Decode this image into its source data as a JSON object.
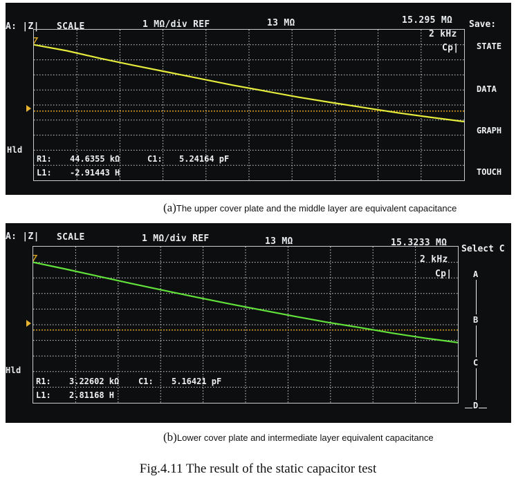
{
  "panels": [
    {
      "id": "a",
      "header": {
        "param": "A: |Z|",
        "scale": "SCALE",
        "div": "1 MΩ/div REF",
        "center": "13 MΩ",
        "ref_value": "15.295 MΩ",
        "freq": "2 kHz",
        "mode": "Cp|"
      },
      "menu_title": "Save:",
      "menu_items": [
        "STATE",
        "DATA",
        "GRAPH",
        "TOUCH"
      ],
      "hld": "Hld",
      "readout": {
        "r1_label": "R1:",
        "r1_value": "44.6355 kΩ",
        "c1_label": "C1:",
        "c1_value": "5.24164 pF",
        "l1_label": "L1:",
        "l1_value": "-2.91443 H"
      },
      "caption_letter": "a",
      "caption_text": "The upper cover plate and the middle layer are equivalent capacitance"
    },
    {
      "id": "b",
      "header": {
        "param": "A: |Z|",
        "scale": "SCALE",
        "div": "1 MΩ/div REF",
        "center": "13 MΩ",
        "ref_value": "15.3233 MΩ",
        "freq": "2 kHz",
        "mode": "Cp|"
      },
      "menu_title": "Select C",
      "menu_items": [
        "A",
        "B",
        "C",
        "D"
      ],
      "hld": "Hld",
      "readout": {
        "r1_label": "R1:",
        "r1_value": "3.22602 kΩ",
        "c1_label": "C1:",
        "c1_value": "5.16421 pF",
        "l1_label": "L1:",
        "l1_value": "2.81168 H"
      },
      "caption_letter": "b",
      "caption_text": "Lower cover plate and intermediate layer equivalent capacitance"
    }
  ],
  "figure_caption": "Fig.4.11 The result of the static capacitor test",
  "colors": {
    "trace_a": "#e6ec3c",
    "trace_b": "#62e23a",
    "ref_line": "#d9a520",
    "grid": "#d8d8d8",
    "screen_bg": "#0c0e10"
  },
  "chart_data": [
    {
      "type": "line",
      "title": "",
      "xlabel": "",
      "ylabel": "|Z|",
      "y_scale_per_div": "1 MΩ/div",
      "grid": true,
      "series": [
        {
          "x": [
            0,
            1,
            2,
            3,
            4,
            5,
            6,
            7,
            8,
            9,
            10,
            11,
            12,
            13
          ],
          "y": [
            17.5,
            17.3,
            17.05,
            16.82,
            16.6,
            16.38,
            16.16,
            15.96,
            15.76,
            15.58,
            15.41,
            15.24,
            15.09,
            14.95
          ]
        }
      ],
      "ref_level": 15.3,
      "ylim": [
        13,
        18
      ]
    },
    {
      "type": "line",
      "title": "",
      "xlabel": "",
      "ylabel": "|Z|",
      "y_scale_per_div": "1 MΩ/div",
      "grid": true,
      "series": [
        {
          "x": [
            0,
            1,
            2,
            3,
            4,
            5,
            6,
            7,
            8,
            9,
            10,
            11,
            12,
            13
          ],
          "y": [
            17.5,
            17.28,
            17.05,
            16.82,
            16.6,
            16.38,
            16.17,
            15.97,
            15.77,
            15.58,
            15.41,
            15.23,
            15.07,
            14.93
          ]
        }
      ],
      "ref_level": 15.33,
      "ylim": [
        13,
        18
      ]
    }
  ]
}
